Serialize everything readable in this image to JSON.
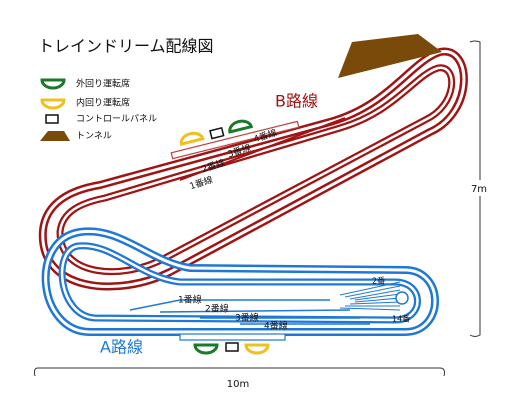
{
  "title": "トレインドリーム配線図",
  "legend": [
    {
      "label": "外回り運転席"
    },
    {
      "label": "内回り運転席"
    },
    {
      "label": "コントロールパネル"
    },
    {
      "label": "トンネル"
    }
  ],
  "routes": [
    {
      "name": "B路線",
      "tracks": [
        "1番線",
        "2番線",
        "3番線",
        "4番線"
      ]
    },
    {
      "name": "A路線",
      "tracks": [
        "1番線",
        "2番線",
        "3番線",
        "4番線"
      ]
    }
  ],
  "yard_labels": [
    "2番",
    "14番"
  ],
  "dimensions": {
    "height": "7m",
    "width": "10m"
  }
}
